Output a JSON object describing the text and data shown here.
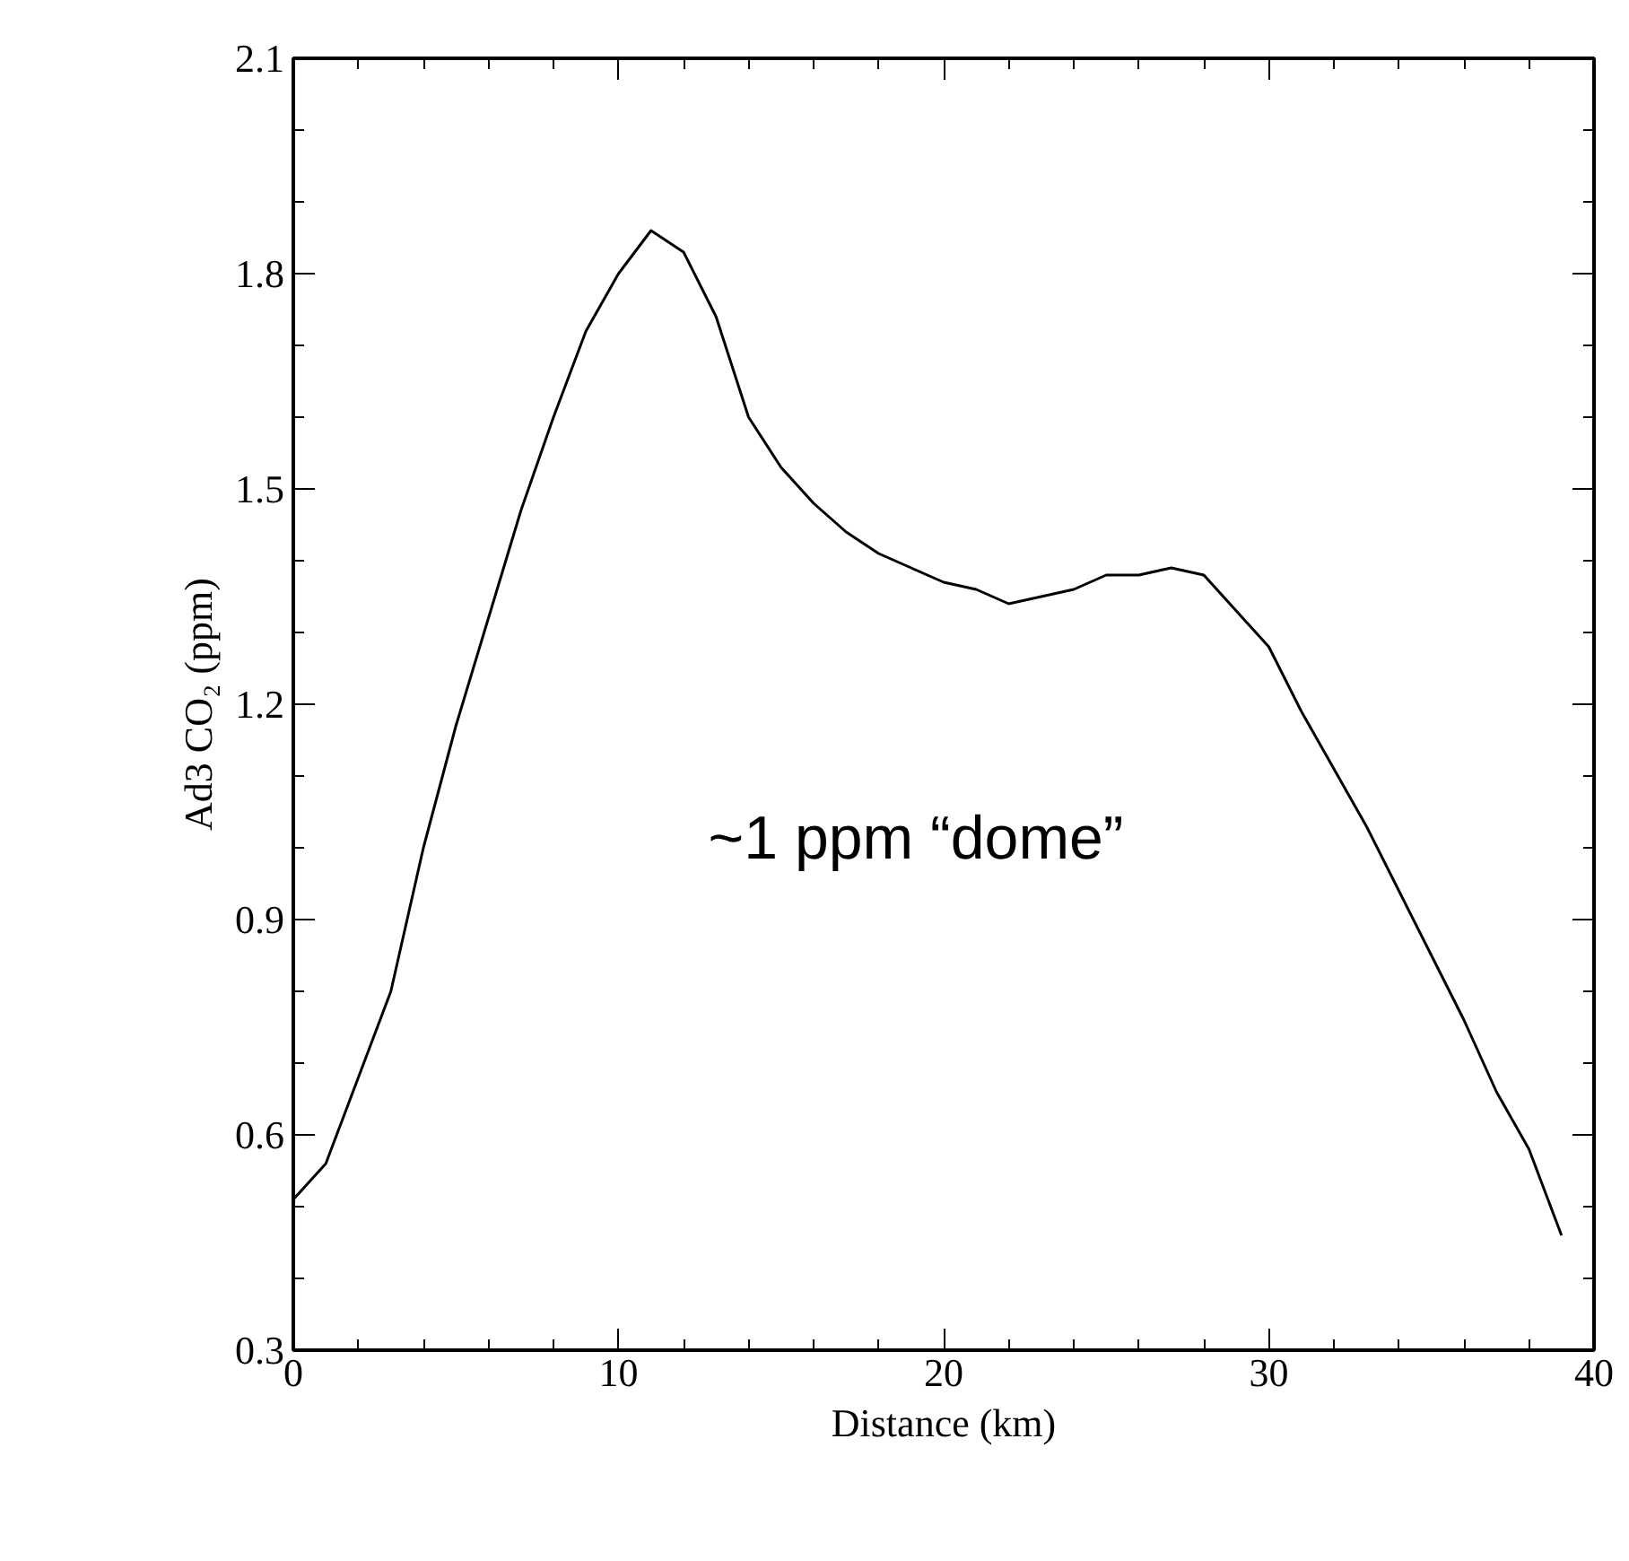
{
  "chart_data": {
    "type": "line",
    "xlabel": "Distance (km)",
    "ylabel": "Ad3 CO₂ (ppm)",
    "x": [
      0,
      1,
      2,
      3,
      4,
      5,
      6,
      7,
      8,
      9,
      10,
      11,
      12,
      13,
      14,
      15,
      16,
      17,
      18,
      19,
      20,
      21,
      22,
      23,
      24,
      25,
      26,
      27,
      28,
      29,
      30,
      31,
      32,
      33,
      34,
      35,
      36,
      37,
      38,
      39
    ],
    "series": [
      {
        "color": "#000000",
        "values": [
          0.51,
          0.56,
          0.68,
          0.8,
          1.0,
          1.17,
          1.32,
          1.47,
          1.6,
          1.72,
          1.8,
          1.86,
          1.83,
          1.74,
          1.6,
          1.53,
          1.48,
          1.44,
          1.41,
          1.39,
          1.37,
          1.36,
          1.34,
          1.35,
          1.36,
          1.38,
          1.38,
          1.39,
          1.38,
          1.33,
          1.28,
          1.19,
          1.11,
          1.03,
          0.94,
          0.85,
          0.76,
          0.66,
          0.58,
          0.46
        ]
      }
    ],
    "xlim": [
      0,
      40
    ],
    "ylim": [
      0.3,
      2.1
    ],
    "xticks": [
      0,
      10,
      20,
      30,
      40
    ],
    "yticks": [
      {
        "value": 0.3,
        "label": "0.3"
      },
      {
        "value": 0.6,
        "label": "0.6"
      },
      {
        "value": 0.9,
        "label": "0.9"
      },
      {
        "value": 1.2,
        "label": "1.2"
      },
      {
        "value": 1.5,
        "label": "1.5"
      },
      {
        "value": 1.8,
        "label": "1.8"
      },
      {
        "value": 2.1,
        "label": "2.1"
      }
    ],
    "annotations": [
      "~1 ppm “dome”"
    ],
    "marker": "none",
    "line_style": "solid"
  }
}
